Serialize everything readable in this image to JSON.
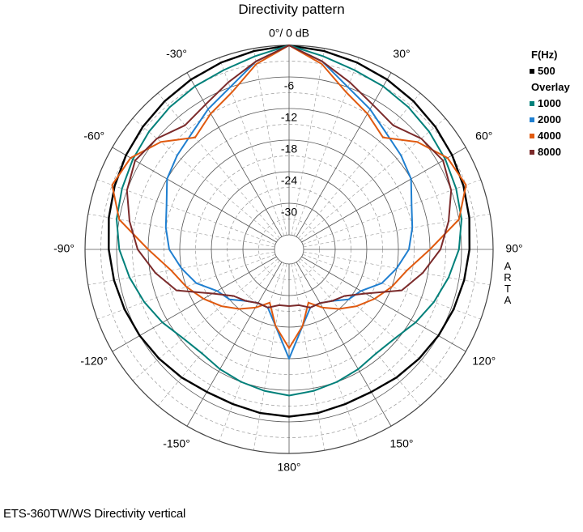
{
  "chart_data": {
    "type": "polar",
    "title": "Directivity pattern",
    "caption": "ETS-360TW/WS  Directivity vertical",
    "brand": "ARTA",
    "radial_unit_label": "0°/ 0 dB",
    "radial_ticks": [
      -6,
      -12,
      -18,
      -24,
      -30
    ],
    "r_min_db": -36,
    "r_max_db": 0,
    "angle_ticks": [
      "-30°",
      "30°",
      "-60°",
      "60°",
      "-90°",
      "90°",
      "-120°",
      "120°",
      "-150°",
      "150°",
      "180°"
    ],
    "legend": {
      "header": "F(Hz)",
      "overlay_header": "Overlay"
    },
    "angles_deg": [
      0,
      10,
      20,
      30,
      40,
      50,
      60,
      70,
      80,
      90,
      100,
      110,
      120,
      130,
      140,
      150,
      160,
      170,
      180,
      190,
      200,
      210,
      220,
      230,
      240,
      250,
      260,
      270,
      280,
      290,
      300,
      310,
      320,
      330,
      340,
      350
    ],
    "series": [
      {
        "name": "500",
        "color": "#000000",
        "values": [
          0,
          -0.5,
          -1,
          -1.5,
          -2,
          -2.5,
          -3,
          -3.5,
          -4,
          -4.5,
          -5,
          -5.5,
          -6,
          -6.5,
          -7,
          -7.5,
          -7.5,
          -7.2,
          -7,
          -7.2,
          -7.5,
          -7.5,
          -7,
          -6.5,
          -6,
          -5.5,
          -5,
          -4.5,
          -4,
          -3.5,
          -3,
          -2.5,
          -2,
          -1.5,
          -1,
          -0.5
        ]
      },
      {
        "name": "1000",
        "color": "#00807a",
        "values": [
          0,
          -1.5,
          -2.5,
          -3,
          -3.5,
          -4,
          -4.5,
          -5,
          -5.5,
          -6.5,
          -8,
          -9.5,
          -11,
          -12.5,
          -13,
          -12.5,
          -12,
          -11.5,
          -11,
          -11.5,
          -12,
          -12.5,
          -13,
          -12.5,
          -11,
          -9.5,
          -8,
          -6.5,
          -5.5,
          -5,
          -4.5,
          -4,
          -3.5,
          -3,
          -2.5,
          -1.5
        ]
      },
      {
        "name": "2000",
        "color": "#1f7fd0",
        "values": [
          0,
          -2.5,
          -6,
          -8,
          -10,
          -11,
          -12,
          -14,
          -15,
          -16,
          -18,
          -20,
          -23,
          -24,
          -26,
          -27,
          -27,
          -24,
          -18,
          -24,
          -27,
          -27,
          -26,
          -24,
          -23,
          -20,
          -18,
          -16,
          -15,
          -14,
          -12,
          -11,
          -10,
          -8,
          -6,
          -2.5
        ]
      },
      {
        "name": "4000",
        "color": "#e05a10",
        "values": [
          0,
          -3,
          -7,
          -9,
          -11,
          -7,
          -4,
          -3,
          -6,
          -12,
          -16,
          -18,
          -20,
          -22,
          -24,
          -26,
          -28,
          -24,
          -20,
          -24,
          -28,
          -26,
          -24,
          -22,
          -20,
          -18,
          -16,
          -12,
          -6,
          -3,
          -4,
          -7,
          -11,
          -9,
          -7,
          -3
        ]
      },
      {
        "name": "8000",
        "color": "#7b2a2a",
        "values": [
          0,
          -2.5,
          -5,
          -7,
          -8,
          -6,
          -5,
          -6,
          -8,
          -10,
          -13,
          -16,
          -22,
          -25,
          -26,
          -27,
          -27,
          -28,
          -28,
          -28,
          -27,
          -27,
          -26,
          -25,
          -22,
          -16,
          -13,
          -10,
          -8,
          -6,
          -5,
          -6,
          -8,
          -7,
          -5,
          -2.5
        ]
      }
    ]
  }
}
